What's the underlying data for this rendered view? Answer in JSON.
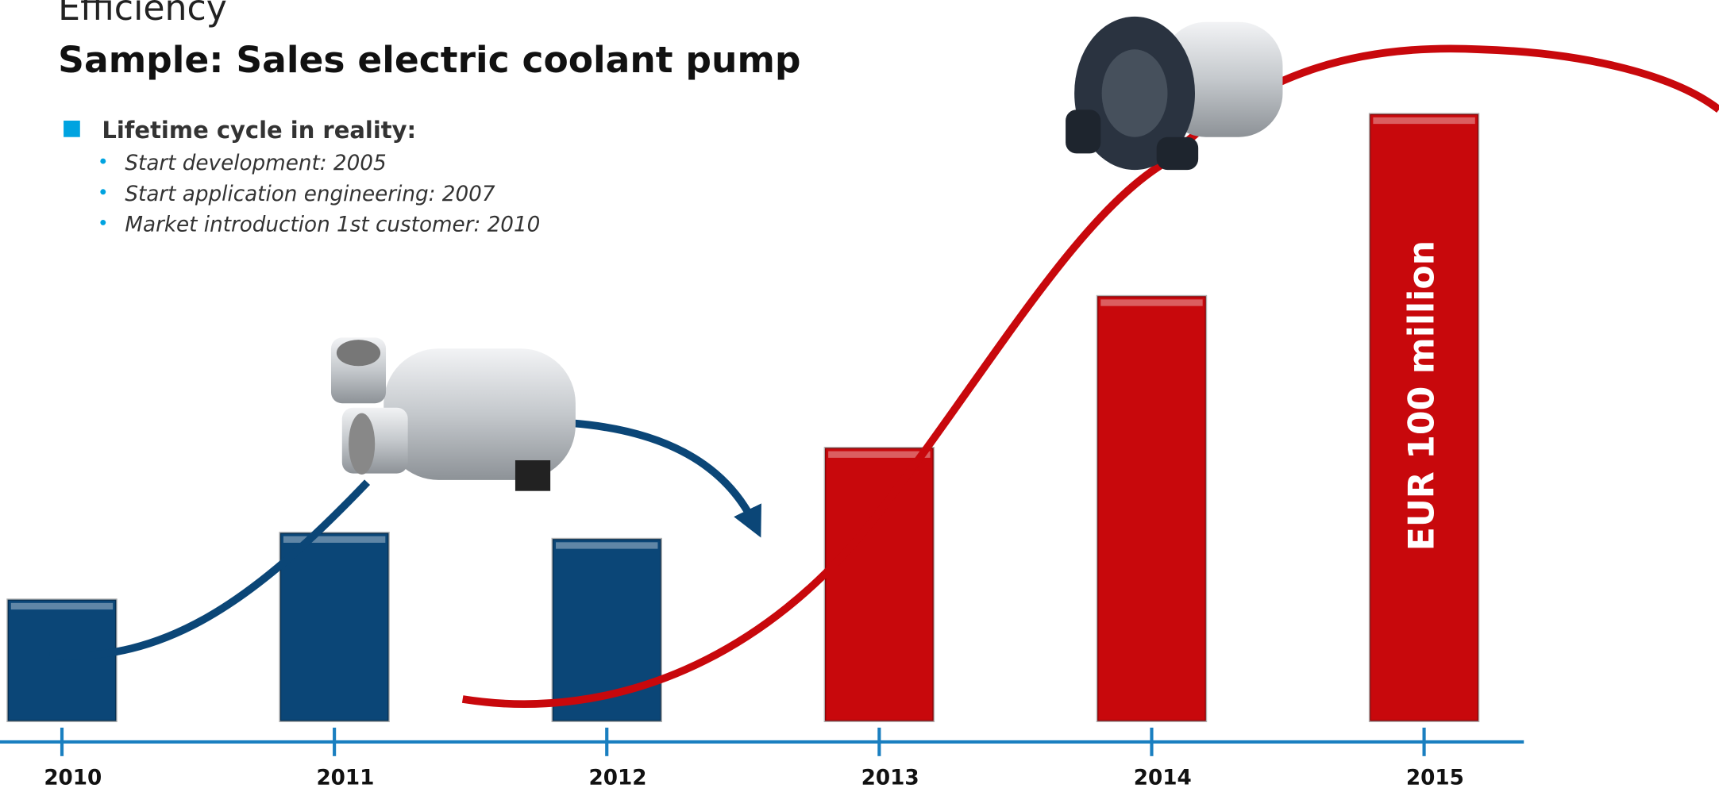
{
  "chart_data": {
    "type": "bar",
    "heading": "Efficiency",
    "title": "Sample: Sales electric coolant pump",
    "bullet": "Lifetime cycle in reality:",
    "sub_bullets": [
      "Start development:  2005",
      "Start application engineering: 2007",
      "Market introduction 1st customer: 2010"
    ],
    "categories": [
      "2010",
      "2011",
      "2012",
      "2013",
      "2014",
      "2015"
    ],
    "values": [
      20,
      31,
      30,
      45,
      70,
      100
    ],
    "value_labels": [
      null,
      null,
      null,
      null,
      null,
      "EUR 100 million"
    ],
    "colors": [
      "#0b4677",
      "#0b4677",
      "#0b4677",
      "#c8080c",
      "#c8080c",
      "#c8080c"
    ]
  }
}
